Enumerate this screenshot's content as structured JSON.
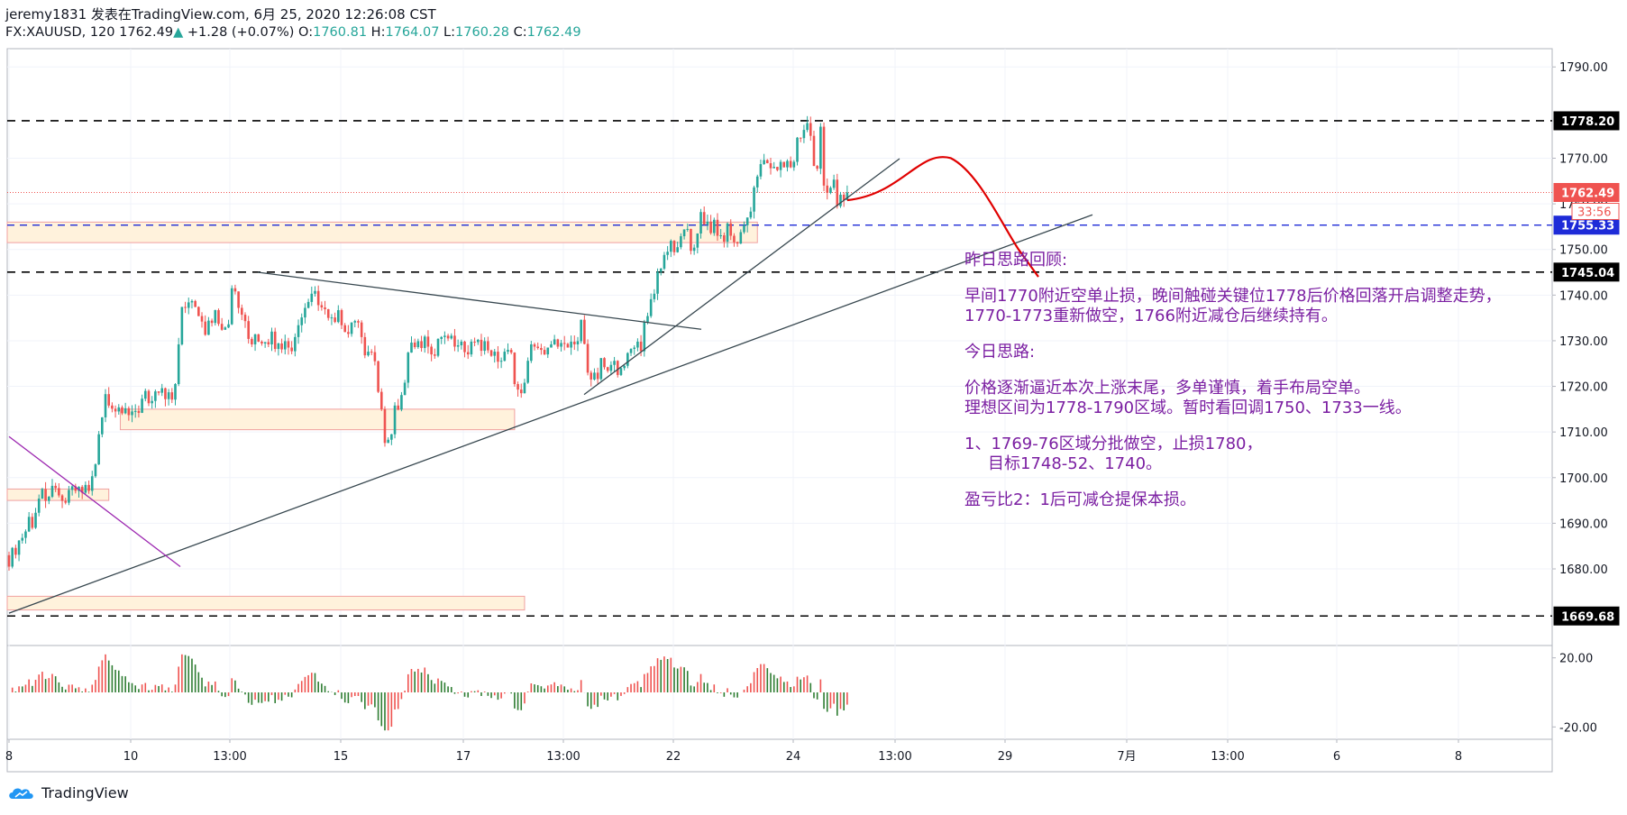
{
  "header": {
    "line1": "jeremy1831 发表在TradingView.com, 6月 25, 2020 12:26:08 CST",
    "symbol": "FX:XAUUSD, 120",
    "last": "1762.49",
    "change": "+1.28 (+0.07%)",
    "o_label": "O:",
    "o": "1760.81",
    "h_label": "H:",
    "h": "1764.07",
    "l_label": "L:",
    "l": "1760.28",
    "c_label": "C:",
    "c": "1762.49"
  },
  "chart_data": {
    "type": "candlestick",
    "symbol": "FX:XAUUSD",
    "interval": "120",
    "ylim": [
      1664,
      1794
    ],
    "y_ticks": [
      1680,
      1690,
      1700,
      1710,
      1720,
      1730,
      1740,
      1750,
      1760,
      1770,
      1790
    ],
    "y_tick_labels": [
      "1680.00",
      "1690.00",
      "1700.00",
      "1710.00",
      "1720.00",
      "1730.00",
      "1740.00",
      "1750.00",
      "1760.00",
      "1770.00",
      "1790.00"
    ],
    "x_tick_labels": [
      "8",
      "10",
      "13:00",
      "15",
      "17",
      "13:00",
      "22",
      "24",
      "13:00",
      "29",
      "7月",
      "13:00",
      "6",
      "8"
    ],
    "price_labels": [
      {
        "value": 1778.2,
        "text": "1778.20",
        "style": "black"
      },
      {
        "value": 1762.49,
        "text": "1762.49",
        "style": "red"
      },
      {
        "value": 1755.33,
        "text": "1755.33",
        "style": "blue"
      },
      {
        "value": 1745.04,
        "text": "1745.04",
        "style": "black"
      },
      {
        "value": 1669.68,
        "text": "1669.68",
        "style": "black"
      }
    ],
    "countdown": "33:56",
    "horizontal_lines": [
      1778.2,
      1745.04,
      1669.68
    ],
    "dashed_blue_line": 1755.33,
    "dotted_red_line": 1762.49,
    "zones": [
      {
        "from_bar": 0,
        "to_bar": 225,
        "low": 1751.5,
        "high": 1756.0
      },
      {
        "from_bar": 34,
        "to_bar": 152,
        "low": 1710.5,
        "high": 1715.0
      },
      {
        "from_bar": 0,
        "to_bar": 30,
        "low": 1695.0,
        "high": 1697.5
      },
      {
        "from_bar": 0,
        "to_bar": 155,
        "low": 1671.0,
        "high": 1674.0
      }
    ],
    "closes": [
      1680.5,
      1684.6,
      1683.1,
      1686.2,
      1686.8,
      1688.2,
      1691.4,
      1689.0,
      1692.3,
      1695.4,
      1697.5,
      1694.9,
      1695.8,
      1698.2,
      1697.7,
      1696.1,
      1694.9,
      1694.5,
      1697.3,
      1698.1,
      1697.1,
      1698.0,
      1696.7,
      1698.4,
      1697.1,
      1700.3,
      1702.9,
      1709.5,
      1713.2,
      1718.3,
      1715.8,
      1715.1,
      1714.5,
      1715.4,
      1714.1,
      1715.2,
      1713.7,
      1714.5,
      1714.6,
      1714.2,
      1717.3,
      1719.0,
      1716.3,
      1716.8,
      1718.9,
      1718.6,
      1719.6,
      1717.2,
      1718.7,
      1717.1,
      1720.5,
      1729.2,
      1737.4,
      1737.2,
      1738.4,
      1738.7,
      1737.4,
      1735.4,
      1734.2,
      1731.3,
      1734.4,
      1733.9,
      1736.7,
      1733.7,
      1732.4,
      1732.9,
      1733.6,
      1741.5,
      1740.8,
      1737.2,
      1735.7,
      1734.3,
      1730.4,
      1729.2,
      1731.4,
      1729.8,
      1729.4,
      1729.7,
      1729.2,
      1732.0,
      1728.2,
      1729.4,
      1728.1,
      1729.9,
      1728.5,
      1727.7,
      1730.8,
      1733.4,
      1735.1,
      1737.2,
      1738.5,
      1740.3,
      1740.9,
      1737.8,
      1737.3,
      1736.9,
      1735.0,
      1735.1,
      1734.1,
      1736.7,
      1733.4,
      1731.9,
      1731.5,
      1734.0,
      1734.3,
      1734.0,
      1730.8,
      1726.8,
      1727.6,
      1727.5,
      1725.5,
      1718.8,
      1715.0,
      1707.6,
      1708.3,
      1709.5,
      1715.8,
      1714.9,
      1718.1,
      1720.8,
      1727.4,
      1729.6,
      1728.6,
      1729.9,
      1728.4,
      1730.9,
      1728.7,
      1727.0,
      1726.7,
      1730.4,
      1730.8,
      1731.1,
      1730.5,
      1731.1,
      1728.7,
      1729.0,
      1729.8,
      1727.5,
      1727.0,
      1729.8,
      1729.7,
      1730.2,
      1727.8,
      1729.9,
      1727.9,
      1726.7,
      1727.6,
      1725.4,
      1725.6,
      1727.6,
      1728.0,
      1727.4,
      1720.5,
      1719.3,
      1718.5,
      1720.8,
      1725.6,
      1729.2,
      1728.7,
      1728.4,
      1728.0,
      1727.0,
      1728.5,
      1729.2,
      1730.3,
      1728.7,
      1729.5,
      1729.3,
      1728.5,
      1729.8,
      1729.2,
      1729.9,
      1734.6,
      1729.3,
      1723.0,
      1721.5,
      1723.0,
      1721.6,
      1726.2,
      1724.2,
      1723.4,
      1724.7,
      1725.6,
      1722.5,
      1724.0,
      1724.5,
      1727.3,
      1728.2,
      1728.5,
      1729.8,
      1727.7,
      1734.0,
      1735.4,
      1739.1,
      1740.3,
      1745.1,
      1745.8,
      1748.8,
      1749.5,
      1751.9,
      1749.4,
      1750.5,
      1752.9,
      1754.4,
      1754.5,
      1749.7,
      1750.4,
      1753.5,
      1758.2,
      1755.5,
      1756.1,
      1753.6,
      1756.5,
      1753.0,
      1753.1,
      1751.7,
      1755.7,
      1753.0,
      1751.6,
      1751.3,
      1753.8,
      1755.3,
      1757.0,
      1758.3,
      1763.6,
      1766.0,
      1768.7,
      1769.6,
      1768.9,
      1767.8,
      1768.1,
      1767.4,
      1769.2,
      1768.0,
      1769.4,
      1768.0,
      1769.2,
      1774.5,
      1774.4,
      1776.2,
      1777.7,
      1774.9,
      1768.3,
      1767.7,
      1776.9,
      1764.0,
      1762.4,
      1763.5,
      1765.3,
      1759.5,
      1762.0,
      1760.8,
      1762.49
    ],
    "oscillator": {
      "ylim": [
        -24,
        24
      ],
      "y_ticks": [
        20,
        -20
      ],
      "y_tick_labels": [
        "20.00",
        "-20.00"
      ],
      "description": "momentum histogram (red/green bars)"
    },
    "annotation_lines": [
      "昨日思路回顾:",
      "早间1770附近空单止损，晚间触碰关键位1778后价格回落开启调整走势，",
      "1770-1773重新做空，1766附近减仓后继续持有。",
      "今日思路:",
      "价格逐渐逼近本次上涨末尾，多单谨慎，着手布局空单。",
      "理想区间为1778-1790区域。暂时看回调1750、1733一线。",
      "1、1769-76区域分批做空，止损1780，",
      "目标1748-52、1740。",
      "盈亏比2：1后可减仓提保本损。"
    ]
  },
  "colors": {
    "up": "#26a69a",
    "down": "#ef5350",
    "annotation": "#7b1fa2",
    "projection": "#e00000",
    "zone_fill": "#fff2dc",
    "zone_border": "#f0a0a0"
  },
  "brand": {
    "logo_text": "TradingView",
    "logo_icon": "tradingview-cloud-icon"
  }
}
